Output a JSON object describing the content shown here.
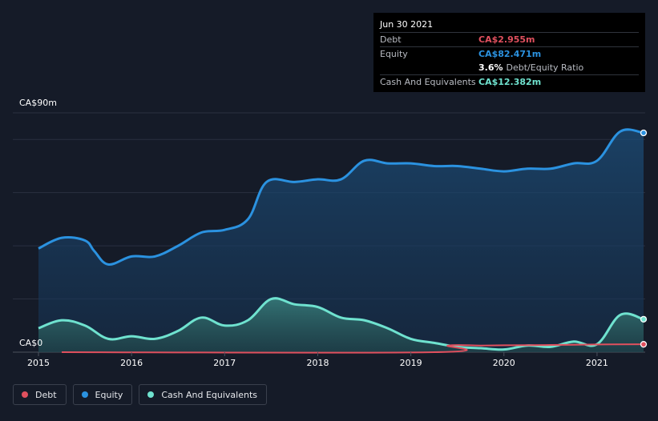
{
  "tooltip": {
    "date": "Jun 30 2021",
    "debt_label": "Debt",
    "debt_value": "CA$2.955m",
    "equity_label": "Equity",
    "equity_value": "CA$82.471m",
    "ratio_value": "3.6%",
    "ratio_label": "Debt/Equity Ratio",
    "cash_label": "Cash And Equivalents",
    "cash_value": "CA$12.382m"
  },
  "legend": [
    {
      "label": "Debt",
      "color": "#e0505e"
    },
    {
      "label": "Equity",
      "color": "#2b92e0"
    },
    {
      "label": "Cash And Equivalents",
      "color": "#6fe2cf"
    }
  ],
  "chart_data": {
    "type": "area",
    "ylim": [
      0,
      90
    ],
    "y_tick_labels": [
      "CA$0",
      "CA$90m"
    ],
    "x_tick_labels": [
      "2015",
      "2016",
      "2017",
      "2018",
      "2019",
      "2020",
      "2021"
    ],
    "xlim": [
      2015.0,
      2021.5
    ],
    "grid": true,
    "legend_position": "bottom-left",
    "series": [
      {
        "name": "Equity",
        "color": "#2b92e0",
        "x": [
          2015.0,
          2015.25,
          2015.5,
          2015.6,
          2015.75,
          2016.0,
          2016.25,
          2016.5,
          2016.75,
          2017.0,
          2017.25,
          2017.45,
          2017.75,
          2018.0,
          2018.25,
          2018.5,
          2018.75,
          2019.0,
          2019.25,
          2019.5,
          2019.75,
          2020.0,
          2020.25,
          2020.5,
          2020.75,
          2021.0,
          2021.25,
          2021.5
        ],
        "values": [
          39,
          43,
          42,
          38,
          33,
          36,
          36,
          40,
          45,
          46,
          50,
          64,
          64,
          65,
          65,
          72,
          71,
          71,
          70,
          70,
          69,
          68,
          69,
          69,
          71,
          72,
          83,
          82.471
        ]
      },
      {
        "name": "Cash And Equivalents",
        "color": "#6fe2cf",
        "x": [
          2015.0,
          2015.25,
          2015.5,
          2015.75,
          2016.0,
          2016.25,
          2016.5,
          2016.75,
          2017.0,
          2017.25,
          2017.5,
          2017.75,
          2018.0,
          2018.25,
          2018.5,
          2018.75,
          2019.0,
          2019.25,
          2019.5,
          2019.75,
          2020.0,
          2020.25,
          2020.5,
          2020.75,
          2021.0,
          2021.25,
          2021.5
        ],
        "values": [
          9,
          12,
          10,
          5,
          6,
          5,
          8,
          13,
          10,
          12,
          20,
          18,
          17,
          13,
          12,
          9,
          5,
          3.5,
          2,
          1.5,
          1,
          2.5,
          2,
          4,
          3,
          14,
          12.382
        ]
      },
      {
        "name": "Debt",
        "color": "#e0505e",
        "x": [
          2015.25,
          2019.25,
          2019.4,
          2019.75,
          2020.0,
          2020.5,
          2021.0,
          2021.5
        ],
        "values": [
          0,
          0,
          2.5,
          2.5,
          2.6,
          2.7,
          2.9,
          2.955
        ]
      }
    ]
  }
}
